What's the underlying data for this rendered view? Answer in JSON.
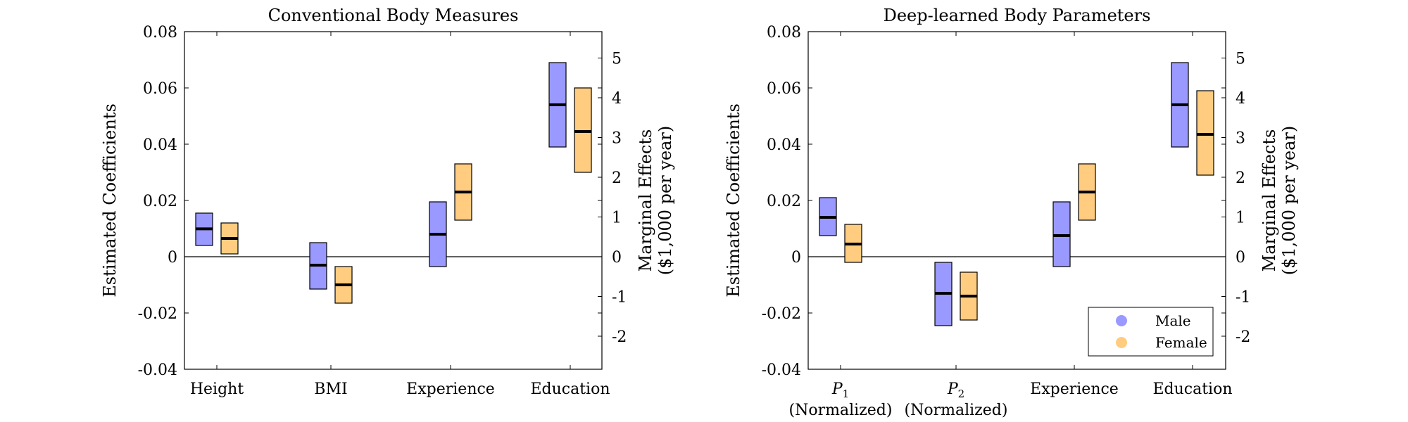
{
  "chart_data": [
    {
      "type": "bar",
      "subtype": "floating-bar-with-mean",
      "title": "Conventional Body Measures",
      "ylabel": "Estimated Coefficients",
      "y2label_line1": "Marginal Effects",
      "y2label_line2": "($1,000 per year)",
      "ylim": [
        -0.04,
        0.08
      ],
      "yticks": [
        "0.08",
        "0.06",
        "0.04",
        "0.02",
        "0",
        "-0.02",
        "-0.04"
      ],
      "y2ticks": [
        "5",
        "4",
        "3",
        "2",
        "1",
        "0",
        "-1",
        "-2"
      ],
      "categories": [
        {
          "line1": "Height",
          "line2": ""
        },
        {
          "line1": "BMI",
          "line2": ""
        },
        {
          "line1": "Experience",
          "line2": ""
        },
        {
          "line1": "Education",
          "line2": ""
        }
      ],
      "series": [
        {
          "name": "Male",
          "color": "#9999ff",
          "low": [
            0.004,
            -0.0115,
            -0.0035,
            0.039
          ],
          "mid": [
            0.0099,
            -0.003,
            0.008,
            0.054
          ],
          "high": [
            0.0155,
            0.005,
            0.0195,
            0.069
          ]
        },
        {
          "name": "Female",
          "color": "#ffcc80",
          "low": [
            0.001,
            -0.0165,
            0.013,
            0.03
          ],
          "mid": [
            0.0065,
            -0.01,
            0.023,
            0.0445
          ],
          "high": [
            0.012,
            -0.0035,
            0.033,
            0.06
          ]
        }
      ],
      "legend": null
    },
    {
      "type": "bar",
      "subtype": "floating-bar-with-mean",
      "title": "Deep-learned Body Parameters",
      "ylabel": "Estimated Coefficients",
      "y2label_line1": "Marginal Effects",
      "y2label_line2": "($1,000 per year)",
      "ylim": [
        -0.04,
        0.08
      ],
      "yticks": [
        "0.08",
        "0.06",
        "0.04",
        "0.02",
        "0",
        "-0.02",
        "-0.04"
      ],
      "y2ticks": [
        "5",
        "4",
        "3",
        "2",
        "1",
        "0",
        "-1",
        "-2"
      ],
      "categories": [
        {
          "line1": "P",
          "sub": "1",
          "line2": "(Normalized)"
        },
        {
          "line1": "P",
          "sub": "2",
          "line2": "(Normalized)"
        },
        {
          "line1": "Experience",
          "line2": ""
        },
        {
          "line1": "Education",
          "line2": ""
        }
      ],
      "series": [
        {
          "name": "Male",
          "color": "#9999ff",
          "low": [
            0.0075,
            -0.0245,
            -0.0035,
            0.039
          ],
          "mid": [
            0.014,
            -0.013,
            0.0075,
            0.054
          ],
          "high": [
            0.021,
            -0.002,
            0.0195,
            0.069
          ]
        },
        {
          "name": "Female",
          "color": "#ffcc80",
          "low": [
            -0.002,
            -0.0225,
            0.013,
            0.029
          ],
          "mid": [
            0.0045,
            -0.014,
            0.023,
            0.0435
          ],
          "high": [
            0.0115,
            -0.0055,
            0.033,
            0.059
          ]
        }
      ],
      "legend": {
        "placement": "bottom-right",
        "entries": [
          "Male",
          "Female"
        ]
      }
    }
  ]
}
